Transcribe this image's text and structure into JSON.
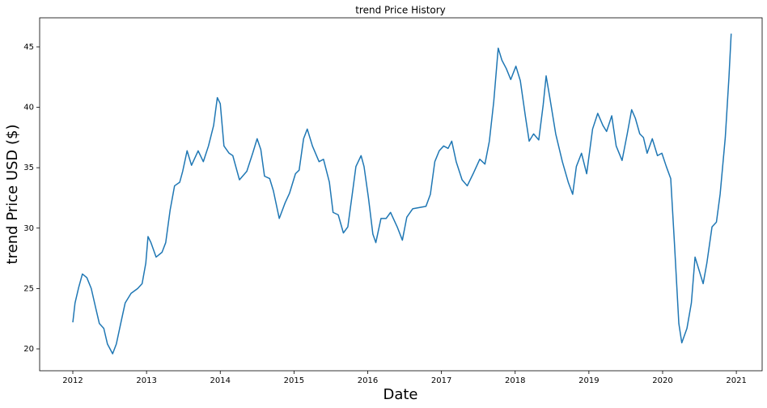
{
  "chart_data": {
    "type": "line",
    "title": "trend Price History",
    "xlabel": "Date",
    "ylabel": "trend Price USD ($)",
    "color": "#1f77b4",
    "grid": false,
    "x": [
      2012.0,
      2012.03,
      2012.08,
      2012.13,
      2012.19,
      2012.25,
      2012.31,
      2012.36,
      2012.42,
      2012.47,
      2012.54,
      2012.59,
      2012.66,
      2012.71,
      2012.79,
      2012.88,
      2012.94,
      2012.99,
      2013.02,
      2013.06,
      2013.13,
      2013.21,
      2013.26,
      2013.32,
      2013.38,
      2013.45,
      2013.49,
      2013.55,
      2013.61,
      2013.7,
      2013.77,
      2013.84,
      2013.91,
      2013.96,
      2014.0,
      2014.05,
      2014.12,
      2014.17,
      2014.26,
      2014.36,
      2014.44,
      2014.5,
      2014.55,
      2014.6,
      2014.67,
      2014.72,
      2014.8,
      2014.88,
      2014.94,
      2015.02,
      2015.07,
      2015.13,
      2015.18,
      2015.25,
      2015.34,
      2015.4,
      2015.48,
      2015.53,
      2015.6,
      2015.67,
      2015.73,
      2015.79,
      2015.84,
      2015.91,
      2015.95,
      2016.01,
      2016.07,
      2016.11,
      2016.18,
      2016.25,
      2016.31,
      2016.4,
      2016.47,
      2016.53,
      2016.61,
      2016.7,
      2016.79,
      2016.85,
      2016.91,
      2016.97,
      2017.03,
      2017.09,
      2017.14,
      2017.2,
      2017.28,
      2017.35,
      2017.43,
      2017.52,
      2017.59,
      2017.65,
      2017.71,
      2017.77,
      2017.82,
      2017.88,
      2017.94,
      2018.01,
      2018.07,
      2018.14,
      2018.19,
      2018.25,
      2018.32,
      2018.38,
      2018.42,
      2018.47,
      2018.55,
      2018.64,
      2018.72,
      2018.78,
      2018.83,
      2018.9,
      2018.97,
      2019.05,
      2019.12,
      2019.19,
      2019.24,
      2019.31,
      2019.37,
      2019.45,
      2019.52,
      2019.58,
      2019.63,
      2019.69,
      2019.74,
      2019.79,
      2019.86,
      2019.93,
      2019.99,
      2020.05,
      2020.11,
      2020.16,
      2020.22,
      2020.26,
      2020.33,
      2020.39,
      2020.44,
      2020.48,
      2020.55,
      2020.6,
      2020.67,
      2020.73,
      2020.78,
      2020.85,
      2020.9,
      2020.93
    ],
    "values": [
      22.2,
      23.8,
      25.1,
      26.2,
      25.9,
      25.0,
      23.4,
      22.1,
      21.7,
      20.4,
      19.6,
      20.4,
      22.4,
      23.8,
      24.6,
      25.0,
      25.4,
      27.1,
      29.3,
      28.8,
      27.6,
      28.0,
      28.8,
      31.5,
      33.5,
      33.8,
      34.7,
      36.4,
      35.2,
      36.4,
      35.5,
      36.8,
      38.5,
      40.8,
      40.3,
      36.8,
      36.2,
      36.0,
      34.0,
      34.7,
      36.2,
      37.4,
      36.5,
      34.3,
      34.1,
      33.1,
      30.8,
      32.1,
      32.9,
      34.5,
      34.8,
      37.4,
      38.2,
      36.8,
      35.5,
      35.7,
      33.8,
      31.3,
      31.1,
      29.6,
      30.1,
      32.8,
      35.1,
      36.0,
      35.1,
      32.5,
      29.5,
      28.8,
      30.8,
      30.8,
      31.3,
      30.1,
      29.0,
      30.9,
      31.6,
      31.7,
      31.8,
      32.8,
      35.5,
      36.4,
      36.8,
      36.6,
      37.2,
      35.5,
      34.0,
      33.5,
      34.5,
      35.7,
      35.3,
      37.2,
      40.5,
      44.9,
      43.9,
      43.2,
      42.3,
      43.4,
      42.2,
      39.2,
      37.2,
      37.8,
      37.3,
      40.2,
      42.6,
      40.8,
      37.8,
      35.5,
      33.8,
      32.8,
      35.1,
      36.2,
      34.5,
      38.2,
      39.5,
      38.5,
      38.0,
      39.3,
      36.8,
      35.6,
      37.8,
      39.8,
      39.1,
      37.8,
      37.5,
      36.2,
      37.4,
      36.0,
      36.2,
      35.1,
      34.1,
      28.8,
      22.1,
      20.5,
      21.7,
      23.8,
      27.6,
      26.8,
      25.4,
      27.1,
      30.1,
      30.5,
      32.8,
      37.5,
      42.5,
      46.1
    ],
    "xlim": [
      2011.55,
      2021.35
    ],
    "ylim": [
      18.19,
      47.41
    ],
    "xticks": [
      2012,
      2013,
      2014,
      2015,
      2016,
      2017,
      2018,
      2019,
      2020,
      2021
    ],
    "yticks": [
      20,
      25,
      30,
      35,
      40,
      45
    ]
  }
}
